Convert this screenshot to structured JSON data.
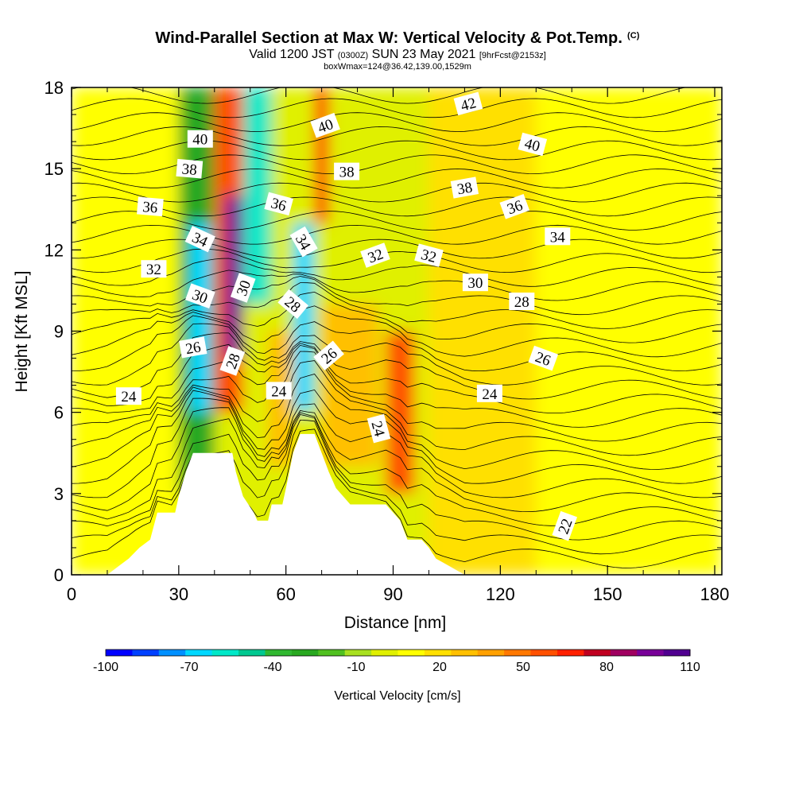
{
  "chart_data": {
    "type": "heatmap",
    "title": "Wind-Parallel Section at Max W: Vertical Velocity & Pot.Temp.",
    "title_mark": "(C)",
    "subtitle_valid": "Valid 1200 JST",
    "subtitle_z": "(0300Z)",
    "subtitle_date": "SUN 23 May 2021",
    "subtitle_fcst": "[9hrFcst@2153z]",
    "box_info": "boxWmax=124@36.42,139.00,1529m",
    "xlabel": "Distance [nm]",
    "ylabel": "Height [Kft MSL]",
    "xlim": [
      0,
      182
    ],
    "ylim": [
      0,
      18
    ],
    "x_ticks": [
      "0",
      "30",
      "60",
      "90",
      "120",
      "150",
      "180"
    ],
    "y_ticks": [
      "0",
      "3",
      "6",
      "9",
      "12",
      "15",
      "18"
    ],
    "colorbar": {
      "label": "Vertical Velocity [cm/s]",
      "tick_labels": [
        "-100",
        "-70",
        "-40",
        "-10",
        "20",
        "50",
        "80",
        "110"
      ],
      "colors": [
        "#0000ff",
        "#0040ff",
        "#0090ff",
        "#00d8ff",
        "#00e8c8",
        "#00c890",
        "#30b830",
        "#28a820",
        "#50c020",
        "#a8e020",
        "#e0f000",
        "#ffff00",
        "#ffe000",
        "#ffc000",
        "#ffa000",
        "#ff7800",
        "#ff5000",
        "#ff2000",
        "#c00020",
        "#a00060",
        "#780098",
        "#500090"
      ]
    },
    "terrain_kft": [
      [
        0,
        0
      ],
      [
        10,
        0
      ],
      [
        13,
        0.3
      ],
      [
        16,
        0.6
      ],
      [
        19,
        1
      ],
      [
        22,
        1.3
      ],
      [
        24,
        2.3
      ],
      [
        29,
        2.3
      ],
      [
        30,
        2.9
      ],
      [
        32,
        3.8
      ],
      [
        34,
        4.5
      ],
      [
        38,
        4.5
      ],
      [
        45,
        4.5
      ],
      [
        46,
        3.8
      ],
      [
        48,
        2.9
      ],
      [
        51,
        2.3
      ],
      [
        52,
        2.0
      ],
      [
        55,
        2.0
      ],
      [
        56,
        2.6
      ],
      [
        59,
        2.6
      ],
      [
        60,
        3.2
      ],
      [
        62,
        4.5
      ],
      [
        64,
        5.2
      ],
      [
        68,
        5.2
      ],
      [
        70,
        4.5
      ],
      [
        72,
        3.8
      ],
      [
        74,
        3.2
      ],
      [
        76,
        2.9
      ],
      [
        78,
        2.6
      ],
      [
        88,
        2.6
      ],
      [
        90,
        2.3
      ],
      [
        92,
        2.0
      ],
      [
        94,
        1.3
      ],
      [
        98,
        1.3
      ],
      [
        100,
        1.0
      ],
      [
        102,
        0.6
      ],
      [
        106,
        0.3
      ],
      [
        110,
        0
      ],
      [
        182,
        0
      ]
    ],
    "velocity_cells": [
      {
        "x": [
          0,
          30
        ],
        "y": [
          0,
          18
        ],
        "value": 5
      },
      {
        "x": [
          30,
          40
        ],
        "y": [
          3,
          18
        ],
        "value": -25
      },
      {
        "x": [
          33,
          39
        ],
        "y": [
          6,
          13
        ],
        "value": -70
      },
      {
        "x": [
          40,
          48
        ],
        "y": [
          6,
          18
        ],
        "value": 60
      },
      {
        "x": [
          43,
          48
        ],
        "y": [
          8,
          14
        ],
        "value": 95
      },
      {
        "x": [
          48,
          56
        ],
        "y": [
          10,
          18
        ],
        "value": -60
      },
      {
        "x": [
          55,
          62
        ],
        "y": [
          4,
          9
        ],
        "value": 30
      },
      {
        "x": [
          62,
          68
        ],
        "y": [
          6,
          13
        ],
        "value": -70
      },
      {
        "x": [
          68,
          72
        ],
        "y": [
          13,
          18
        ],
        "value": 70
      },
      {
        "x": [
          70,
          86
        ],
        "y": [
          4,
          10
        ],
        "value": 25
      },
      {
        "x": [
          88,
          96
        ],
        "y": [
          3,
          9
        ],
        "value": 55
      },
      {
        "x": [
          100,
          130
        ],
        "y": [
          0,
          18
        ],
        "value": 15
      },
      {
        "x": [
          130,
          182
        ],
        "y": [
          0,
          18
        ],
        "value": 5
      }
    ],
    "theta_labels": [
      {
        "text": "22",
        "x": 138,
        "y": 1.8,
        "angle": -70
      },
      {
        "text": "24",
        "x": 16,
        "y": 6.6,
        "angle": 0
      },
      {
        "text": "24",
        "x": 58,
        "y": 6.8,
        "angle": 0
      },
      {
        "text": "24",
        "x": 86,
        "y": 5.4,
        "angle": 75
      },
      {
        "text": "24",
        "x": 117,
        "y": 6.7,
        "angle": 0
      },
      {
        "text": "26",
        "x": 34,
        "y": 8.4,
        "angle": -10
      },
      {
        "text": "26",
        "x": 72,
        "y": 8.1,
        "angle": -40
      },
      {
        "text": "26",
        "x": 132,
        "y": 8.0,
        "angle": 20
      },
      {
        "text": "28",
        "x": 45,
        "y": 7.9,
        "angle": -70
      },
      {
        "text": "28",
        "x": 62,
        "y": 10.0,
        "angle": 40
      },
      {
        "text": "28",
        "x": 126,
        "y": 10.1,
        "angle": 0
      },
      {
        "text": "30",
        "x": 36,
        "y": 10.3,
        "angle": 20
      },
      {
        "text": "30",
        "x": 48,
        "y": 10.6,
        "angle": -70
      },
      {
        "text": "30",
        "x": 113,
        "y": 10.8,
        "angle": 0
      },
      {
        "text": "32",
        "x": 23,
        "y": 11.3,
        "angle": 0
      },
      {
        "text": "32",
        "x": 85,
        "y": 11.8,
        "angle": -20
      },
      {
        "text": "32",
        "x": 100,
        "y": 11.8,
        "angle": 15
      },
      {
        "text": "34",
        "x": 36,
        "y": 12.4,
        "angle": 25
      },
      {
        "text": "34",
        "x": 65,
        "y": 12.3,
        "angle": 60
      },
      {
        "text": "34",
        "x": 136,
        "y": 12.5,
        "angle": 0
      },
      {
        "text": "36",
        "x": 22,
        "y": 13.6,
        "angle": 5
      },
      {
        "text": "36",
        "x": 58,
        "y": 13.7,
        "angle": 15
      },
      {
        "text": "36",
        "x": 124,
        "y": 13.6,
        "angle": -20
      },
      {
        "text": "38",
        "x": 33,
        "y": 15.0,
        "angle": 5
      },
      {
        "text": "38",
        "x": 77,
        "y": 14.9,
        "angle": 0
      },
      {
        "text": "38",
        "x": 110,
        "y": 14.3,
        "angle": -10
      },
      {
        "text": "40",
        "x": 36,
        "y": 16.1,
        "angle": 0
      },
      {
        "text": "40",
        "x": 71,
        "y": 16.6,
        "angle": -20
      },
      {
        "text": "40",
        "x": 129,
        "y": 15.9,
        "angle": 15
      },
      {
        "text": "42",
        "x": 111,
        "y": 17.4,
        "angle": -15
      }
    ]
  }
}
